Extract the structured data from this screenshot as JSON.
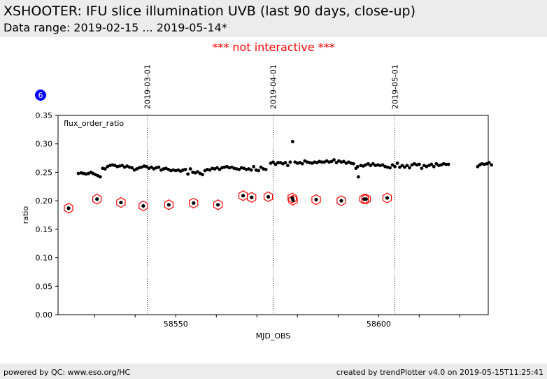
{
  "header": {
    "title": "XSHOOTER: IFU slice illumination UVB (last 90 days, close-up)",
    "subtitle": "Data range: 2019-02-15 ... 2019-05-14*"
  },
  "notice": "*** not interactive ***",
  "badge": "6",
  "footer": {
    "left": "powered by QC: www.eso.org/HC",
    "right": "created by trendPlotter v4.0 on 2019-05-15T11:25:41"
  },
  "chart_data": {
    "type": "scatter",
    "panel_label": "flux_order_ratio",
    "xlabel": "MJD_OBS",
    "ylabel": "ratio",
    "xlim": [
      58521,
      58627
    ],
    "ylim": [
      0,
      0.35
    ],
    "x_ticks": [
      58550,
      58600
    ],
    "y_ticks": [
      "0.00",
      "0.05",
      "0.10",
      "0.15",
      "0.20",
      "0.25",
      "0.30",
      "0.35"
    ],
    "date_markers": [
      {
        "label": "2019-03-01",
        "x": 58543
      },
      {
        "label": "2019-04-01",
        "x": 58574
      },
      {
        "label": "2019-05-01",
        "x": 58604
      }
    ],
    "colors": {
      "points": "#000000",
      "highlight": "#ff0000",
      "badge": "#0000ff"
    },
    "series": [
      {
        "values": [
          [
            58526.0,
            0.248
          ],
          [
            58526.7,
            0.249
          ],
          [
            58527.3,
            0.248
          ],
          [
            58527.9,
            0.247
          ],
          [
            58528.5,
            0.248
          ],
          [
            58529.1,
            0.25
          ],
          [
            58529.6,
            0.248
          ],
          [
            58530.2,
            0.246
          ],
          [
            58530.8,
            0.244
          ],
          [
            58531.4,
            0.242
          ],
          [
            58532.0,
            0.257
          ],
          [
            58532.6,
            0.256
          ],
          [
            58533.2,
            0.26
          ],
          [
            58533.8,
            0.262
          ],
          [
            58534.4,
            0.263
          ],
          [
            58535.0,
            0.262
          ],
          [
            58535.6,
            0.26
          ],
          [
            58536.2,
            0.261
          ],
          [
            58536.8,
            0.262
          ],
          [
            58537.4,
            0.259
          ],
          [
            58538.0,
            0.261
          ],
          [
            58538.6,
            0.259
          ],
          [
            58539.2,
            0.258
          ],
          [
            58539.8,
            0.254
          ],
          [
            58540.4,
            0.256
          ],
          [
            58541.0,
            0.258
          ],
          [
            58541.6,
            0.259
          ],
          [
            58542.2,
            0.261
          ],
          [
            58542.8,
            0.26
          ],
          [
            58543.4,
            0.257
          ],
          [
            58544.0,
            0.259
          ],
          [
            58544.6,
            0.256
          ],
          [
            58545.2,
            0.258
          ],
          [
            58545.8,
            0.259
          ],
          [
            58546.4,
            0.254
          ],
          [
            58547.0,
            0.256
          ],
          [
            58547.6,
            0.257
          ],
          [
            58548.2,
            0.255
          ],
          [
            58548.8,
            0.253
          ],
          [
            58549.4,
            0.254
          ],
          [
            58550.0,
            0.253
          ],
          [
            58550.6,
            0.254
          ],
          [
            58551.2,
            0.252
          ],
          [
            58551.8,
            0.254
          ],
          [
            58552.4,
            0.255
          ],
          [
            58553.0,
            0.247
          ],
          [
            58553.6,
            0.256
          ],
          [
            58554.2,
            0.25
          ],
          [
            58554.8,
            0.249
          ],
          [
            58555.4,
            0.251
          ],
          [
            58556.0,
            0.248
          ],
          [
            58556.6,
            0.246
          ],
          [
            58557.2,
            0.253
          ],
          [
            58557.8,
            0.255
          ],
          [
            58558.4,
            0.254
          ],
          [
            58559.0,
            0.257
          ],
          [
            58559.6,
            0.256
          ],
          [
            58560.2,
            0.258
          ],
          [
            58560.8,
            0.255
          ],
          [
            58561.4,
            0.258
          ],
          [
            58562.0,
            0.259
          ],
          [
            58562.6,
            0.26
          ],
          [
            58563.2,
            0.258
          ],
          [
            58563.8,
            0.259
          ],
          [
            58564.4,
            0.257
          ],
          [
            58565.0,
            0.256
          ],
          [
            58565.6,
            0.255
          ],
          [
            58566.2,
            0.258
          ],
          [
            58566.8,
            0.257
          ],
          [
            58567.4,
            0.255
          ],
          [
            58568.0,
            0.256
          ],
          [
            58568.6,
            0.254
          ],
          [
            58569.2,
            0.26
          ],
          [
            58569.8,
            0.254
          ],
          [
            58570.4,
            0.253
          ],
          [
            58571.0,
            0.259
          ],
          [
            58571.6,
            0.256
          ],
          [
            58572.2,
            0.255
          ],
          [
            58573.4,
            0.266
          ],
          [
            58574.0,
            0.268
          ],
          [
            58574.6,
            0.264
          ],
          [
            58575.2,
            0.267
          ],
          [
            58575.8,
            0.267
          ],
          [
            58576.4,
            0.265
          ],
          [
            58577.0,
            0.267
          ],
          [
            58577.6,
            0.262
          ],
          [
            58578.2,
            0.268
          ],
          [
            58578.8,
            0.304
          ],
          [
            58579.4,
            0.268
          ],
          [
            58580.0,
            0.266
          ],
          [
            58580.6,
            0.267
          ],
          [
            58581.2,
            0.265
          ],
          [
            58581.8,
            0.27
          ],
          [
            58582.4,
            0.268
          ],
          [
            58583.0,
            0.267
          ],
          [
            58583.6,
            0.266
          ],
          [
            58584.2,
            0.268
          ],
          [
            58584.8,
            0.267
          ],
          [
            58585.4,
            0.269
          ],
          [
            58586.0,
            0.268
          ],
          [
            58586.6,
            0.268
          ],
          [
            58587.2,
            0.27
          ],
          [
            58587.8,
            0.268
          ],
          [
            58588.4,
            0.269
          ],
          [
            58589.0,
            0.272
          ],
          [
            58589.6,
            0.267
          ],
          [
            58590.2,
            0.27
          ],
          [
            58590.8,
            0.268
          ],
          [
            58591.4,
            0.269
          ],
          [
            58592.0,
            0.266
          ],
          [
            58592.6,
            0.268
          ],
          [
            58593.2,
            0.266
          ],
          [
            58593.8,
            0.265
          ],
          [
            58594.4,
            0.257
          ],
          [
            58594.8,
            0.26
          ],
          [
            58595.0,
            0.242
          ],
          [
            58595.6,
            0.262
          ],
          [
            58596.2,
            0.261
          ],
          [
            58596.8,
            0.263
          ],
          [
            58597.4,
            0.265
          ],
          [
            58598.0,
            0.262
          ],
          [
            58598.6,
            0.265
          ],
          [
            58599.2,
            0.262
          ],
          [
            58599.8,
            0.263
          ],
          [
            58600.4,
            0.262
          ],
          [
            58601.0,
            0.263
          ],
          [
            58601.6,
            0.26
          ],
          [
            58602.2,
            0.259
          ],
          [
            58602.8,
            0.258
          ],
          [
            58603.4,
            0.263
          ],
          [
            58604.0,
            0.26
          ],
          [
            58604.6,
            0.266
          ],
          [
            58605.2,
            0.259
          ],
          [
            58605.8,
            0.262
          ],
          [
            58606.4,
            0.259
          ],
          [
            58607.0,
            0.262
          ],
          [
            58607.6,
            0.258
          ],
          [
            58608.2,
            0.263
          ],
          [
            58608.8,
            0.265
          ],
          [
            58609.4,
            0.263
          ],
          [
            58610.0,
            0.264
          ],
          [
            58610.6,
            0.257
          ],
          [
            58611.2,
            0.262
          ],
          [
            58611.8,
            0.26
          ],
          [
            58612.4,
            0.262
          ],
          [
            58613.0,
            0.264
          ],
          [
            58613.6,
            0.26
          ],
          [
            58614.2,
            0.265
          ],
          [
            58614.8,
            0.262
          ],
          [
            58615.4,
            0.263
          ],
          [
            58616.0,
            0.265
          ],
          [
            58616.6,
            0.264
          ],
          [
            58617.2,
            0.264
          ],
          [
            58624.4,
            0.26
          ],
          [
            58624.9,
            0.263
          ],
          [
            58625.4,
            0.265
          ],
          [
            58626.0,
            0.264
          ],
          [
            58626.6,
            0.265
          ],
          [
            58627.2,
            0.267
          ],
          [
            58627.8,
            0.263
          ]
        ]
      },
      {
        "values": [
          [
            58523.6,
            0.187
          ],
          [
            58530.6,
            0.203
          ],
          [
            58536.5,
            0.197
          ],
          [
            58542.0,
            0.191
          ],
          [
            58548.3,
            0.193
          ],
          [
            58554.4,
            0.196
          ],
          [
            58560.4,
            0.193
          ],
          [
            58566.6,
            0.209
          ],
          [
            58568.7,
            0.206
          ],
          [
            58572.8,
            0.207
          ],
          [
            58578.7,
            0.205
          ],
          [
            58578.9,
            0.201
          ],
          [
            58584.6,
            0.202
          ],
          [
            58590.8,
            0.2
          ],
          [
            58596.4,
            0.203
          ],
          [
            58596.9,
            0.203
          ],
          [
            58602.1,
            0.205
          ]
        ]
      }
    ]
  }
}
